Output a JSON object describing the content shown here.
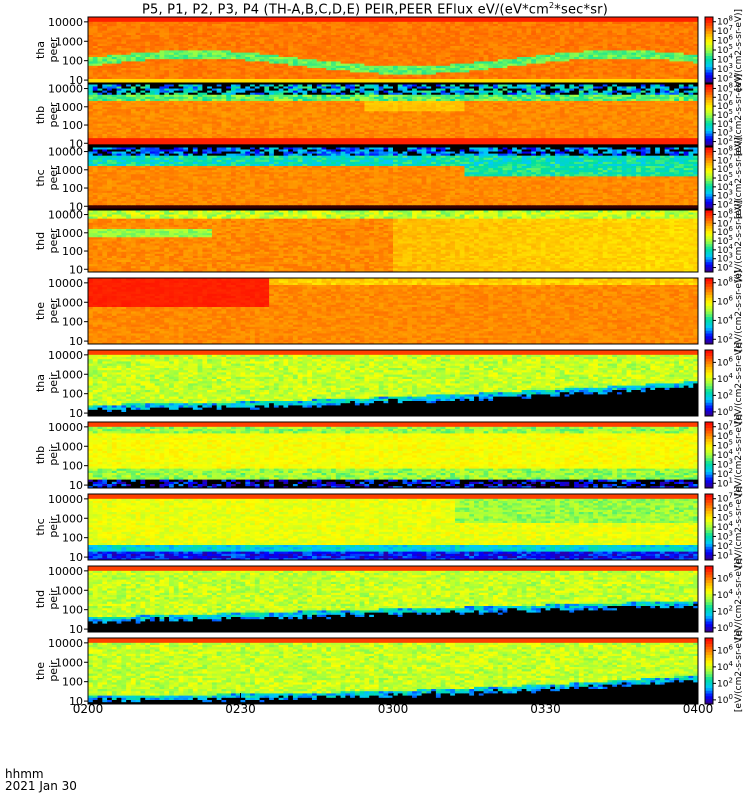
{
  "title": {
    "main": "P5, P1, P2, P3, P4 (TH-A,B,C,D,E) PEIR,PEER EFlux eV/(eV*cm",
    "sup1": "2",
    "tail": "*sec*sr)"
  },
  "footer": {
    "time_label": "hhmm",
    "date_label": "2021 Jan 30"
  },
  "colorbar_unit_label": "[eV/(cm2-s-sr-eV)]",
  "colors": {
    "background": "#ffffff",
    "nodata": "#000000",
    "axis": "#000000",
    "ramp": [
      "#3a0080",
      "#0000ff",
      "#00c8ff",
      "#00e0a0",
      "#a0ff40",
      "#ffff00",
      "#ffb000",
      "#ff5000",
      "#ff0000"
    ]
  },
  "chart_data": {
    "type": "heatmap",
    "x_tick_labels": [
      "0200",
      "0230",
      "0300",
      "0330",
      "0400"
    ],
    "y_tick_labels": [
      "10",
      "100",
      "1000",
      "10000"
    ],
    "y_scale": "log",
    "panels": [
      {
        "line1": "tha",
        "line2": "peer",
        "cbar_ticks": [
          "10^2",
          "10^3",
          "10^4",
          "10^5",
          "10^6",
          "10^7",
          "10^8"
        ],
        "cbar_exp": [
          2,
          3,
          4,
          5,
          6,
          7,
          8
        ],
        "cbar_range": [
          1.5,
          8.5
        ],
        "pattern": "electron_ring"
      },
      {
        "line1": "thb",
        "line2": "peer",
        "cbar_ticks": [
          "10^2",
          "10^3",
          "10^4",
          "10^5",
          "10^6",
          "10^7",
          "10^8"
        ],
        "cbar_exp": [
          2,
          3,
          4,
          5,
          6,
          7,
          8
        ],
        "cbar_range": [
          1.5,
          8.5
        ],
        "pattern": "electron_top_noise"
      },
      {
        "line1": "thc",
        "line2": "peer",
        "cbar_ticks": [
          "10^2",
          "10^3",
          "10^4",
          "10^5",
          "10^6",
          "10^7",
          "10^8"
        ],
        "cbar_exp": [
          2,
          3,
          4,
          5,
          6,
          7,
          8
        ],
        "cbar_range": [
          1.5,
          8.5
        ],
        "pattern": "electron_blue_top"
      },
      {
        "line1": "thd",
        "line2": "peer",
        "cbar_ticks": [
          "10^2",
          "10^3",
          "10^4",
          "10^5",
          "10^6",
          "10^7",
          "10^8"
        ],
        "cbar_exp": [
          2,
          3,
          4,
          5,
          6,
          7,
          8
        ],
        "cbar_range": [
          1.5,
          8.5
        ],
        "pattern": "electron_fade"
      },
      {
        "line1": "the",
        "line2": "peer",
        "cbar_ticks": [
          "10^2",
          "10^4",
          "10^6",
          "10^8"
        ],
        "cbar_exp": [
          2,
          4,
          6,
          8
        ],
        "cbar_range": [
          1.5,
          8.5
        ],
        "pattern": "electron_red"
      },
      {
        "line1": "tha",
        "line2": "peir",
        "cbar_ticks": [
          "10^0",
          "10^2",
          "10^4",
          "10^6"
        ],
        "cbar_exp": [
          0,
          2,
          4,
          6
        ],
        "cbar_range": [
          -0.5,
          7.5
        ],
        "pattern": "ion_black_right"
      },
      {
        "line1": "thb",
        "line2": "peir",
        "cbar_ticks": [
          "10^1",
          "10^2",
          "10^3",
          "10^4",
          "10^5",
          "10^6",
          "10^7"
        ],
        "cbar_exp": [
          1,
          2,
          3,
          4,
          5,
          6,
          7
        ],
        "cbar_range": [
          0.5,
          7.5
        ],
        "pattern": "ion_noisy_bottom"
      },
      {
        "line1": "thc",
        "line2": "peir",
        "cbar_ticks": [
          "10^1",
          "10^2",
          "10^3",
          "10^4",
          "10^5",
          "10^6",
          "10^7"
        ],
        "cbar_exp": [
          1,
          2,
          3,
          4,
          5,
          6,
          7
        ],
        "cbar_range": [
          0.5,
          7.5
        ],
        "pattern": "ion_blue_bottom"
      },
      {
        "line1": "thd",
        "line2": "peir",
        "cbar_ticks": [
          "10^0",
          "10^2",
          "10^4",
          "10^6"
        ],
        "cbar_exp": [
          0,
          2,
          4,
          6
        ],
        "cbar_range": [
          -0.5,
          7.5
        ],
        "pattern": "ion_black_low"
      },
      {
        "line1": "the",
        "line2": "peir",
        "cbar_ticks": [
          "10^0",
          "10^2",
          "10^4",
          "10^6"
        ],
        "cbar_exp": [
          0,
          2,
          4,
          6
        ],
        "cbar_range": [
          -0.5,
          7.5
        ],
        "pattern": "ion_black_right2"
      }
    ]
  }
}
